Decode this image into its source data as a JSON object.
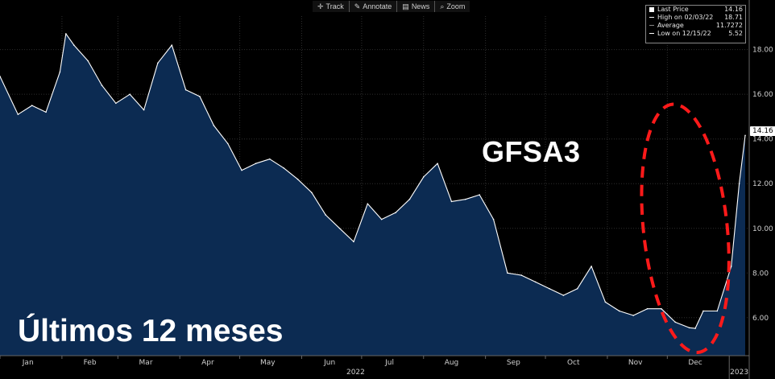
{
  "toolbar": {
    "items": [
      {
        "icon": "crosshair-icon",
        "label": "Track"
      },
      {
        "icon": "pencil-icon",
        "label": "Annotate"
      },
      {
        "icon": "news-icon",
        "label": "News"
      },
      {
        "icon": "magnifier-icon",
        "label": "Zoom"
      }
    ]
  },
  "legend": {
    "last_label": "Last Price",
    "last_value": "14.16",
    "high_label": "High on 02/03/22",
    "high_value": "18.71",
    "avg_label": "Average",
    "avg_value": "11.7272",
    "low_label": "Low on 12/15/22",
    "low_value": "5.52"
  },
  "annotations": {
    "ticker": "GFSA3",
    "caption": "Últimos 12 meses",
    "last_badge": "14.16"
  },
  "colors": {
    "area_fill": "#0c2b52",
    "line": "#ffffff",
    "highlight": "#ff1a1a",
    "background": "#000000"
  },
  "chart_data": {
    "type": "area",
    "title": "",
    "xlabel": "",
    "ylabel": "",
    "ylim": [
      4.3,
      19.5
    ],
    "y_ticks": [
      "6.00",
      "8.00",
      "10.00",
      "12.00",
      "14.00",
      "16.00",
      "18.00"
    ],
    "x_ticks": [
      "Jan",
      "Feb",
      "Mar",
      "Apr",
      "May",
      "Jun",
      "Jul",
      "Aug",
      "Sep",
      "Oct",
      "Nov",
      "Dec"
    ],
    "year_labels": [
      "2022",
      "2023"
    ],
    "grid": true,
    "series": [
      {
        "x": [
          "2022-01-03",
          "2022-01-10",
          "2022-01-17",
          "2022-01-24",
          "2022-01-31",
          "2022-02-03",
          "2022-02-07",
          "2022-02-14",
          "2022-02-21",
          "2022-02-28",
          "2022-03-07",
          "2022-03-14",
          "2022-03-21",
          "2022-03-28",
          "2022-04-04",
          "2022-04-11",
          "2022-04-18",
          "2022-04-25",
          "2022-05-02",
          "2022-05-09",
          "2022-05-16",
          "2022-05-23",
          "2022-05-30",
          "2022-06-06",
          "2022-06-13",
          "2022-06-20",
          "2022-06-27",
          "2022-07-04",
          "2022-07-11",
          "2022-07-18",
          "2022-07-25",
          "2022-08-01",
          "2022-08-08",
          "2022-08-15",
          "2022-08-22",
          "2022-08-29",
          "2022-09-05",
          "2022-09-12",
          "2022-09-19",
          "2022-09-26",
          "2022-10-03",
          "2022-10-10",
          "2022-10-17",
          "2022-10-24",
          "2022-10-31",
          "2022-11-07",
          "2022-11-14",
          "2022-11-21",
          "2022-11-28",
          "2022-12-05",
          "2022-12-12",
          "2022-12-15",
          "2022-12-19",
          "2022-12-26",
          "2023-01-02",
          "2023-01-06",
          "2023-01-09"
        ],
        "values": [
          16.8,
          15.1,
          15.5,
          15.2,
          17.0,
          18.71,
          18.2,
          17.5,
          16.4,
          15.6,
          16.0,
          15.3,
          17.4,
          18.2,
          16.2,
          15.9,
          14.6,
          13.8,
          12.6,
          12.9,
          13.1,
          12.7,
          12.2,
          11.6,
          10.6,
          10.0,
          9.4,
          11.1,
          10.4,
          10.7,
          11.3,
          12.3,
          12.9,
          11.2,
          11.3,
          11.5,
          10.4,
          8.0,
          7.9,
          7.6,
          7.3,
          7.0,
          7.3,
          8.3,
          6.7,
          6.3,
          6.1,
          6.4,
          6.4,
          5.8,
          5.55,
          5.52,
          6.3,
          6.3,
          8.3,
          12.0,
          14.16
        ]
      }
    ],
    "markers": {
      "high": {
        "date": "2022-02-03",
        "value": 18.71
      },
      "low": {
        "date": "2022-12-15",
        "value": 5.52
      },
      "average": 11.7272,
      "last": 14.16
    }
  }
}
